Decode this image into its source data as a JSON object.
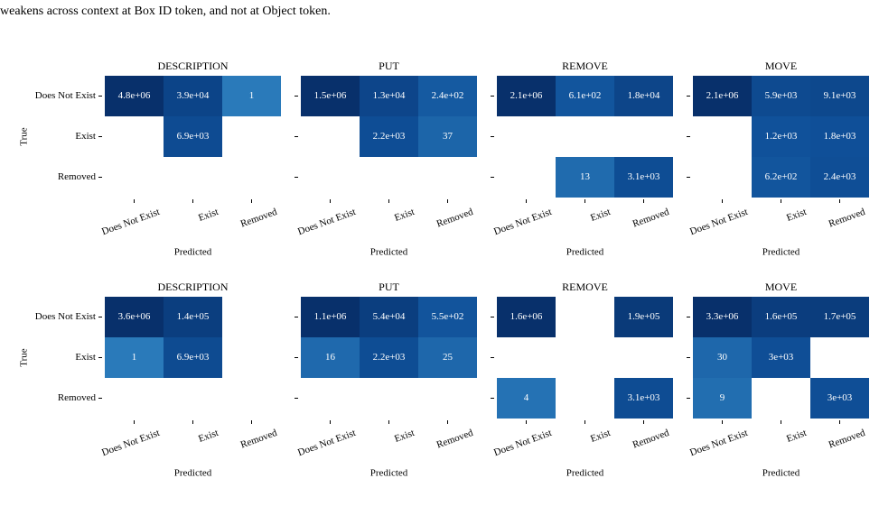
{
  "caption_text": "weakens across context at Box ID token, and not at Object token.",
  "figure": {
    "rows": [
      {
        "ylabel": "True",
        "row_labels": [
          "Does Not Exist",
          "Exist",
          "Removed"
        ],
        "panels": [
          {
            "title": "DESCRIPTION",
            "col_labels": [
              "Does Not Exist",
              "Exist",
              "Removed"
            ],
            "xlabel": "Predicted",
            "values": [
              [
                4800000,
                39000,
                1
              ],
              [
                null,
                6900,
                null
              ],
              [
                null,
                null,
                null
              ]
            ],
            "value_labels": [
              [
                "4.8e+06",
                "3.9e+04",
                "1"
              ],
              [
                null,
                "6.9e+03",
                null
              ],
              [
                null,
                null,
                null
              ]
            ]
          },
          {
            "title": "PUT",
            "col_labels": [
              "Does Not Exist",
              "Exist",
              "Removed"
            ],
            "xlabel": "Predicted",
            "values": [
              [
                1500000,
                13000,
                240
              ],
              [
                null,
                2200,
                37
              ],
              [
                null,
                null,
                null
              ]
            ],
            "value_labels": [
              [
                "1.5e+06",
                "1.3e+04",
                "2.4e+02"
              ],
              [
                null,
                "2.2e+03",
                "37"
              ],
              [
                null,
                null,
                null
              ]
            ]
          },
          {
            "title": "REMOVE",
            "col_labels": [
              "Does Not Exist",
              "Exist",
              "Removed"
            ],
            "xlabel": "Predicted",
            "values": [
              [
                2100000,
                610,
                18000
              ],
              [
                null,
                null,
                null
              ],
              [
                null,
                13,
                3100
              ]
            ],
            "value_labels": [
              [
                "2.1e+06",
                "6.1e+02",
                "1.8e+04"
              ],
              [
                null,
                null,
                null
              ],
              [
                null,
                "13",
                "3.1e+03"
              ]
            ]
          },
          {
            "title": "MOVE",
            "col_labels": [
              "Does Not Exist",
              "Exist",
              "Removed"
            ],
            "xlabel": "Predicted",
            "values": [
              [
                2100000,
                5900,
                9100
              ],
              [
                null,
                1200,
                1800
              ],
              [
                null,
                620,
                2400
              ]
            ],
            "value_labels": [
              [
                "2.1e+06",
                "5.9e+03",
                "9.1e+03"
              ],
              [
                null,
                "1.2e+03",
                "1.8e+03"
              ],
              [
                null,
                "6.2e+02",
                "2.4e+03"
              ]
            ]
          }
        ]
      },
      {
        "ylabel": "True",
        "row_labels": [
          "Does Not Exist",
          "Exist",
          "Removed"
        ],
        "panels": [
          {
            "title": "DESCRIPTION",
            "col_labels": [
              "Does Not Exist",
              "Exist",
              "Removed"
            ],
            "xlabel": "Predicted",
            "values": [
              [
                3600000,
                140000,
                null
              ],
              [
                1,
                6900,
                null
              ],
              [
                null,
                null,
                null
              ]
            ],
            "value_labels": [
              [
                "3.6e+06",
                "1.4e+05",
                null
              ],
              [
                "1",
                "6.9e+03",
                null
              ],
              [
                null,
                null,
                null
              ]
            ]
          },
          {
            "title": "PUT",
            "col_labels": [
              "Does Not Exist",
              "Exist",
              "Removed"
            ],
            "xlabel": "Predicted",
            "values": [
              [
                1100000,
                54000,
                550
              ],
              [
                16,
                2200,
                25
              ],
              [
                null,
                null,
                null
              ]
            ],
            "value_labels": [
              [
                "1.1e+06",
                "5.4e+04",
                "5.5e+02"
              ],
              [
                "16",
                "2.2e+03",
                "25"
              ],
              [
                null,
                null,
                null
              ]
            ]
          },
          {
            "title": "REMOVE",
            "col_labels": [
              "Does Not Exist",
              "Exist",
              "Removed"
            ],
            "xlabel": "Predicted",
            "values": [
              [
                1600000,
                null,
                190000
              ],
              [
                null,
                null,
                null
              ],
              [
                4,
                null,
                3100
              ]
            ],
            "value_labels": [
              [
                "1.6e+06",
                null,
                "1.9e+05"
              ],
              [
                null,
                null,
                null
              ],
              [
                "4",
                null,
                "3.1e+03"
              ]
            ]
          },
          {
            "title": "MOVE",
            "col_labels": [
              "Does Not Exist",
              "Exist",
              "Removed"
            ],
            "xlabel": "Predicted",
            "values": [
              [
                3300000,
                160000,
                170000
              ],
              [
                30,
                3000,
                null
              ],
              [
                9,
                null,
                3000
              ]
            ],
            "value_labels": [
              [
                "3.3e+06",
                "1.6e+05",
                "1.7e+05"
              ],
              [
                "30",
                "3e+03",
                null
              ],
              [
                "9",
                null,
                "3e+03"
              ]
            ]
          }
        ]
      }
    ]
  }
}
